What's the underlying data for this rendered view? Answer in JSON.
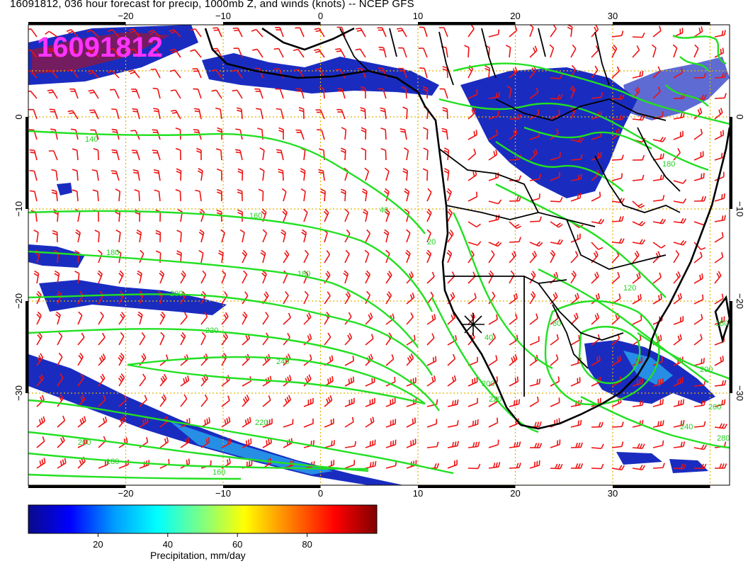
{
  "title": "16091812, 036 hour forecast for precip, 1000mb Z, and winds (knots) -- NCEP GFS",
  "stamp": "16091812",
  "colors": {
    "stamp": "#ff33ff",
    "contour": "#22e022",
    "contour_label": "#22d022",
    "wind_barb": "#ee1111",
    "grid": "#e0b000",
    "coast": "#000000",
    "precip_scale": [
      "#0a0a8c",
      "#0000ff",
      "#00a0ff",
      "#00ffff",
      "#80ff80",
      "#ffff00",
      "#ff8000",
      "#ff0000",
      "#800000"
    ]
  },
  "axes": {
    "lon_ticks": [
      "−20",
      "−10",
      "0",
      "10",
      "20",
      "30"
    ],
    "lat_ticks": [
      "0",
      "−10",
      "−20",
      "−30"
    ],
    "lon_range": [
      -30,
      42
    ],
    "lat_range": [
      -40,
      10
    ]
  },
  "contour_labels": [
    "140",
    "160",
    "180",
    "180",
    "200",
    "220",
    "240",
    "220",
    "200",
    "180",
    "160",
    "40",
    "20",
    "40",
    "80",
    "120",
    "180",
    "200",
    "260",
    "280",
    "240",
    "220",
    "200",
    "180"
  ],
  "colorbar": {
    "ticks": [
      "20",
      "40",
      "60",
      "80"
    ],
    "range": [
      0,
      100
    ],
    "label": "Precipitation, mm/day"
  },
  "marker": "cross-marker"
}
